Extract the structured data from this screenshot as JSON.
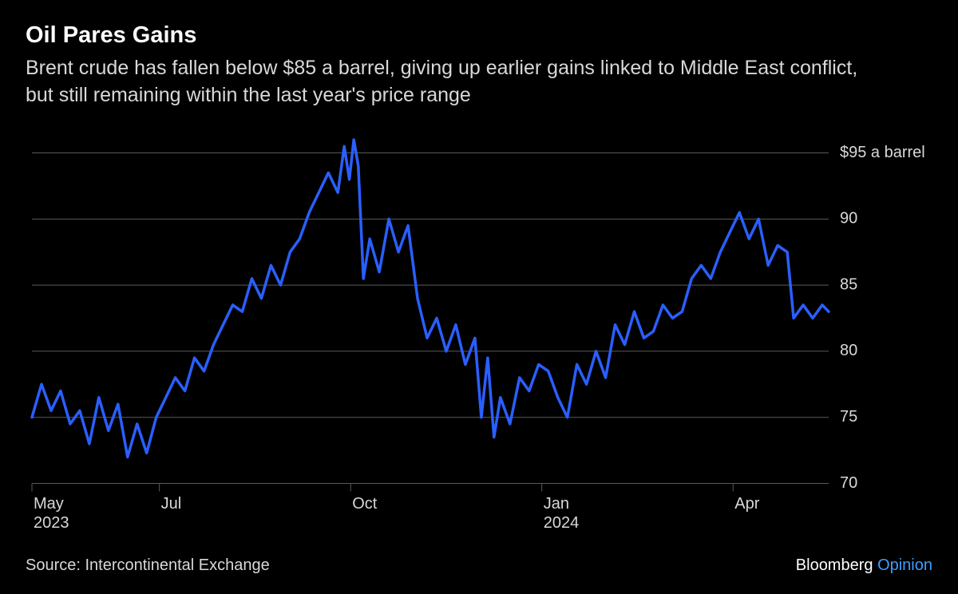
{
  "title": "Oil Pares Gains",
  "subtitle": "Brent crude has fallen below $85 a barrel, giving up earlier gains linked to Middle East conflict, but still remaining within the last year's price range",
  "source": "Source: Intercontinental Exchange",
  "brand_main": "Bloomberg",
  "brand_accent": "Opinion",
  "chart": {
    "type": "line",
    "background_color": "#000000",
    "grid_color": "#5a5a5a",
    "text_color": "#d8d8d8",
    "line_color": "#2a5fff",
    "line_width": 3.5,
    "ylim": [
      70,
      96
    ],
    "y_ticks": [
      {
        "value": 95,
        "label": "$95 a barrel"
      },
      {
        "value": 90,
        "label": "90"
      },
      {
        "value": 85,
        "label": "85"
      },
      {
        "value": 80,
        "label": "80"
      },
      {
        "value": 75,
        "label": "75"
      },
      {
        "value": 70,
        "label": "70"
      }
    ],
    "x_range": [
      0,
      12.5
    ],
    "x_ticks": [
      {
        "value": 0,
        "lines": [
          "May",
          "2023"
        ]
      },
      {
        "value": 2,
        "lines": [
          "Jul"
        ]
      },
      {
        "value": 5,
        "lines": [
          "Oct"
        ]
      },
      {
        "value": 8,
        "lines": [
          "Jan",
          "2024"
        ]
      },
      {
        "value": 11,
        "lines": [
          "Apr"
        ]
      }
    ],
    "series": [
      {
        "x": 0.0,
        "y": 75.0
      },
      {
        "x": 0.15,
        "y": 77.5
      },
      {
        "x": 0.3,
        "y": 75.5
      },
      {
        "x": 0.45,
        "y": 77.0
      },
      {
        "x": 0.6,
        "y": 74.5
      },
      {
        "x": 0.75,
        "y": 75.5
      },
      {
        "x": 0.9,
        "y": 73.0
      },
      {
        "x": 1.05,
        "y": 76.5
      },
      {
        "x": 1.2,
        "y": 74.0
      },
      {
        "x": 1.35,
        "y": 76.0
      },
      {
        "x": 1.5,
        "y": 72.0
      },
      {
        "x": 1.65,
        "y": 74.5
      },
      {
        "x": 1.8,
        "y": 72.3
      },
      {
        "x": 1.95,
        "y": 75.0
      },
      {
        "x": 2.1,
        "y": 76.5
      },
      {
        "x": 2.25,
        "y": 78.0
      },
      {
        "x": 2.4,
        "y": 77.0
      },
      {
        "x": 2.55,
        "y": 79.5
      },
      {
        "x": 2.7,
        "y": 78.5
      },
      {
        "x": 2.85,
        "y": 80.5
      },
      {
        "x": 3.0,
        "y": 82.0
      },
      {
        "x": 3.15,
        "y": 83.5
      },
      {
        "x": 3.3,
        "y": 83.0
      },
      {
        "x": 3.45,
        "y": 85.5
      },
      {
        "x": 3.6,
        "y": 84.0
      },
      {
        "x": 3.75,
        "y": 86.5
      },
      {
        "x": 3.9,
        "y": 85.0
      },
      {
        "x": 4.05,
        "y": 87.5
      },
      {
        "x": 4.2,
        "y": 88.5
      },
      {
        "x": 4.35,
        "y": 90.5
      },
      {
        "x": 4.5,
        "y": 92.0
      },
      {
        "x": 4.65,
        "y": 93.5
      },
      {
        "x": 4.8,
        "y": 92.0
      },
      {
        "x": 4.9,
        "y": 95.5
      },
      {
        "x": 4.98,
        "y": 93.0
      },
      {
        "x": 5.05,
        "y": 96.0
      },
      {
        "x": 5.12,
        "y": 94.0
      },
      {
        "x": 5.2,
        "y": 85.5
      },
      {
        "x": 5.3,
        "y": 88.5
      },
      {
        "x": 5.45,
        "y": 86.0
      },
      {
        "x": 5.6,
        "y": 90.0
      },
      {
        "x": 5.75,
        "y": 87.5
      },
      {
        "x": 5.9,
        "y": 89.5
      },
      {
        "x": 6.05,
        "y": 84.0
      },
      {
        "x": 6.2,
        "y": 81.0
      },
      {
        "x": 6.35,
        "y": 82.5
      },
      {
        "x": 6.5,
        "y": 80.0
      },
      {
        "x": 6.65,
        "y": 82.0
      },
      {
        "x": 6.8,
        "y": 79.0
      },
      {
        "x": 6.95,
        "y": 81.0
      },
      {
        "x": 7.05,
        "y": 75.0
      },
      {
        "x": 7.15,
        "y": 79.5
      },
      {
        "x": 7.25,
        "y": 73.5
      },
      {
        "x": 7.35,
        "y": 76.5
      },
      {
        "x": 7.5,
        "y": 74.5
      },
      {
        "x": 7.65,
        "y": 78.0
      },
      {
        "x": 7.8,
        "y": 77.0
      },
      {
        "x": 7.95,
        "y": 79.0
      },
      {
        "x": 8.1,
        "y": 78.5
      },
      {
        "x": 8.25,
        "y": 76.5
      },
      {
        "x": 8.4,
        "y": 75.0
      },
      {
        "x": 8.55,
        "y": 79.0
      },
      {
        "x": 8.7,
        "y": 77.5
      },
      {
        "x": 8.85,
        "y": 80.0
      },
      {
        "x": 9.0,
        "y": 78.0
      },
      {
        "x": 9.15,
        "y": 82.0
      },
      {
        "x": 9.3,
        "y": 80.5
      },
      {
        "x": 9.45,
        "y": 83.0
      },
      {
        "x": 9.6,
        "y": 81.0
      },
      {
        "x": 9.75,
        "y": 81.5
      },
      {
        "x": 9.9,
        "y": 83.5
      },
      {
        "x": 10.05,
        "y": 82.5
      },
      {
        "x": 10.2,
        "y": 83.0
      },
      {
        "x": 10.35,
        "y": 85.5
      },
      {
        "x": 10.5,
        "y": 86.5
      },
      {
        "x": 10.65,
        "y": 85.5
      },
      {
        "x": 10.8,
        "y": 87.5
      },
      {
        "x": 10.95,
        "y": 89.0
      },
      {
        "x": 11.1,
        "y": 90.5
      },
      {
        "x": 11.25,
        "y": 88.5
      },
      {
        "x": 11.4,
        "y": 90.0
      },
      {
        "x": 11.55,
        "y": 86.5
      },
      {
        "x": 11.7,
        "y": 88.0
      },
      {
        "x": 11.85,
        "y": 87.5
      },
      {
        "x": 11.95,
        "y": 82.5
      },
      {
        "x": 12.1,
        "y": 83.5
      },
      {
        "x": 12.25,
        "y": 82.5
      },
      {
        "x": 12.4,
        "y": 83.5
      },
      {
        "x": 12.5,
        "y": 83.0
      }
    ]
  },
  "brand_accent_color": "#3c9dff"
}
